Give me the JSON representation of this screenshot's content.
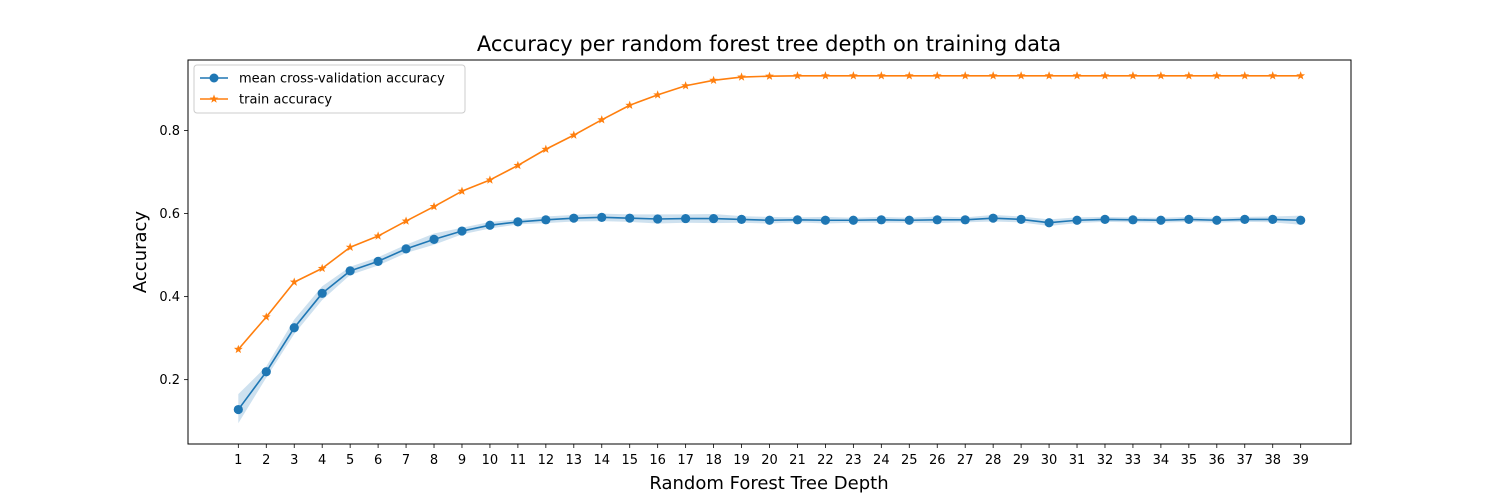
{
  "chart_data": {
    "type": "line",
    "title": "Accuracy per random forest tree depth on training data",
    "xlabel": "Random Forest Tree Depth",
    "ylabel": "Accuracy",
    "x": [
      1,
      2,
      3,
      4,
      5,
      6,
      7,
      8,
      9,
      10,
      11,
      12,
      13,
      14,
      15,
      16,
      17,
      18,
      19,
      20,
      21,
      22,
      23,
      24,
      25,
      26,
      27,
      28,
      29,
      30,
      31,
      32,
      33,
      34,
      35,
      36,
      37,
      38,
      39
    ],
    "xlim": [
      -0.8,
      40.8
    ],
    "ylim": [
      0.045,
      0.97
    ],
    "yticks": [
      0.2,
      0.4,
      0.6,
      0.8
    ],
    "yticks_labels": [
      "0.2",
      "0.4",
      "0.6",
      "0.8"
    ],
    "grid": false,
    "legend_position": "upper-left",
    "series": [
      {
        "name": "mean cross-validation accuracy",
        "color": "#1f77b4",
        "marker": "circle",
        "values": [
          0.128,
          0.219,
          0.325,
          0.408,
          0.462,
          0.485,
          0.515,
          0.538,
          0.558,
          0.572,
          0.58,
          0.585,
          0.589,
          0.591,
          0.589,
          0.587,
          0.588,
          0.588,
          0.586,
          0.584,
          0.585,
          0.584,
          0.584,
          0.585,
          0.584,
          0.585,
          0.585,
          0.589,
          0.586,
          0.578,
          0.584,
          0.586,
          0.585,
          0.584,
          0.586,
          0.584,
          0.586,
          0.586,
          0.584
        ],
        "band_upper": [
          0.165,
          0.232,
          0.345,
          0.425,
          0.472,
          0.495,
          0.525,
          0.552,
          0.566,
          0.58,
          0.586,
          0.593,
          0.597,
          0.6,
          0.598,
          0.598,
          0.598,
          0.599,
          0.594,
          0.592,
          0.591,
          0.592,
          0.59,
          0.592,
          0.59,
          0.593,
          0.591,
          0.597,
          0.593,
          0.586,
          0.591,
          0.592,
          0.591,
          0.59,
          0.592,
          0.59,
          0.592,
          0.593,
          0.595
        ],
        "band_lower": [
          0.095,
          0.205,
          0.31,
          0.392,
          0.452,
          0.475,
          0.505,
          0.525,
          0.55,
          0.564,
          0.574,
          0.577,
          0.581,
          0.582,
          0.58,
          0.576,
          0.578,
          0.577,
          0.578,
          0.576,
          0.579,
          0.576,
          0.578,
          0.578,
          0.578,
          0.577,
          0.579,
          0.581,
          0.579,
          0.57,
          0.577,
          0.58,
          0.579,
          0.578,
          0.58,
          0.578,
          0.58,
          0.579,
          0.573
        ]
      },
      {
        "name": "train accuracy",
        "color": "#ff7f0e",
        "marker": "star",
        "values": [
          0.273,
          0.351,
          0.435,
          0.468,
          0.519,
          0.546,
          0.582,
          0.617,
          0.654,
          0.681,
          0.716,
          0.755,
          0.789,
          0.826,
          0.861,
          0.886,
          0.908,
          0.921,
          0.929,
          0.931,
          0.932,
          0.932,
          0.932,
          0.932,
          0.932,
          0.932,
          0.932,
          0.932,
          0.932,
          0.932,
          0.932,
          0.932,
          0.932,
          0.932,
          0.932,
          0.932,
          0.932,
          0.932,
          0.932
        ]
      }
    ]
  }
}
